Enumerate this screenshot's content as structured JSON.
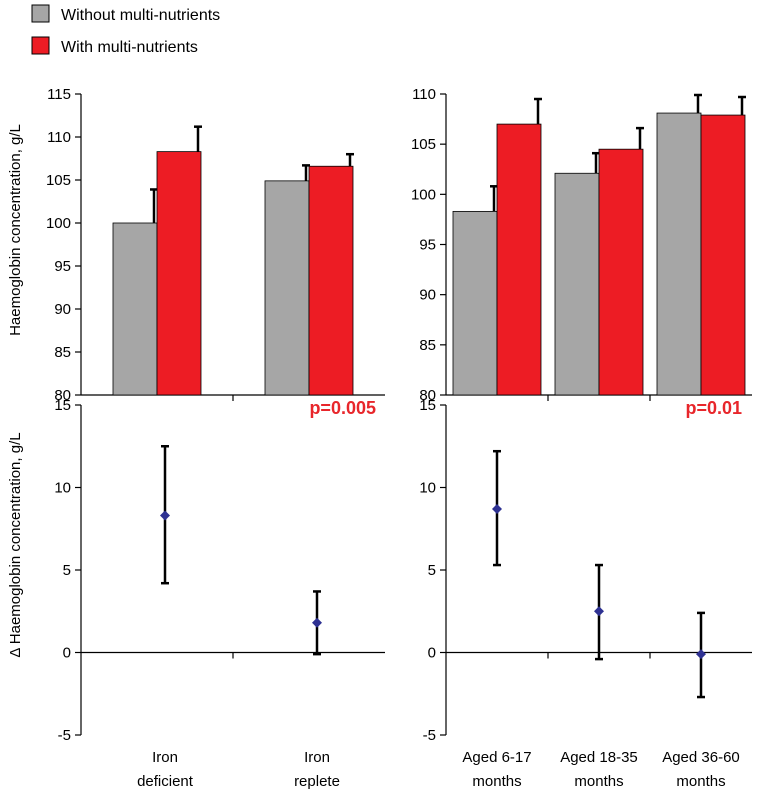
{
  "legend": {
    "items": [
      {
        "label": "Without multi-nutrients",
        "color": "#a6a6a6"
      },
      {
        "label": "With multi-nutrients",
        "color": "#ed1c24"
      }
    ]
  },
  "colors": {
    "without": "#a6a6a6",
    "with": "#ed1c24",
    "marker": "#2e3192",
    "pvalue": "#e8262b",
    "axis": "#000000"
  },
  "chart_data": [
    {
      "type": "bar",
      "panel": "top-left",
      "ylabel": "Haemoglobin concentration, g/L",
      "ylim": [
        80,
        115
      ],
      "yticks": [
        80,
        85,
        90,
        95,
        100,
        105,
        110,
        115
      ],
      "categories": [
        "Iron deficient",
        "Iron replete"
      ],
      "series": [
        {
          "name": "Without multi-nutrients",
          "values": [
            100.0,
            104.9
          ],
          "errors": [
            3.9,
            1.8
          ]
        },
        {
          "name": "With multi-nutrients",
          "values": [
            108.3,
            106.6
          ],
          "errors": [
            2.9,
            1.4
          ]
        }
      ]
    },
    {
      "type": "bar",
      "panel": "top-right",
      "ylabel": "",
      "ylim": [
        80,
        110
      ],
      "yticks": [
        80,
        85,
        90,
        95,
        100,
        105,
        110
      ],
      "categories": [
        "Aged 6-17 months",
        "Aged 18-35 months",
        "Aged 36-60 months"
      ],
      "series": [
        {
          "name": "Without multi-nutrients",
          "values": [
            98.3,
            102.1,
            108.1
          ],
          "errors": [
            2.5,
            2.0,
            1.8
          ]
        },
        {
          "name": "With multi-nutrients",
          "values": [
            107.0,
            104.5,
            107.9
          ],
          "errors": [
            2.5,
            2.1,
            1.8
          ]
        }
      ]
    },
    {
      "type": "scatter",
      "panel": "bottom-left",
      "ylabel": "Δ Haemoglobin concentration, g/L",
      "ylim": [
        -5,
        15
      ],
      "yticks": [
        -5,
        0,
        5,
        10,
        15
      ],
      "categories": [
        "Iron deficient",
        "Iron replete"
      ],
      "category_lines": [
        [
          "Iron",
          "deficient"
        ],
        [
          "Iron",
          "replete"
        ]
      ],
      "values": [
        8.3,
        1.8
      ],
      "lower": [
        4.2,
        -0.1
      ],
      "upper": [
        12.5,
        3.7
      ],
      "annotation": "p=0.005"
    },
    {
      "type": "scatter",
      "panel": "bottom-right",
      "ylabel": "",
      "ylim": [
        -5,
        15
      ],
      "yticks": [
        -5,
        0,
        5,
        10,
        15
      ],
      "categories": [
        "Aged 6-17 months",
        "Aged 18-35 months",
        "Aged 36-60 months"
      ],
      "category_lines": [
        [
          "Aged 6-17",
          "months"
        ],
        [
          "Aged 18-35",
          "months"
        ],
        [
          "Aged 36-60",
          "months"
        ]
      ],
      "values": [
        8.7,
        2.5,
        -0.1
      ],
      "lower": [
        5.3,
        -0.4,
        -2.7
      ],
      "upper": [
        12.2,
        5.3,
        2.4
      ],
      "annotation": "p=0.01"
    }
  ]
}
